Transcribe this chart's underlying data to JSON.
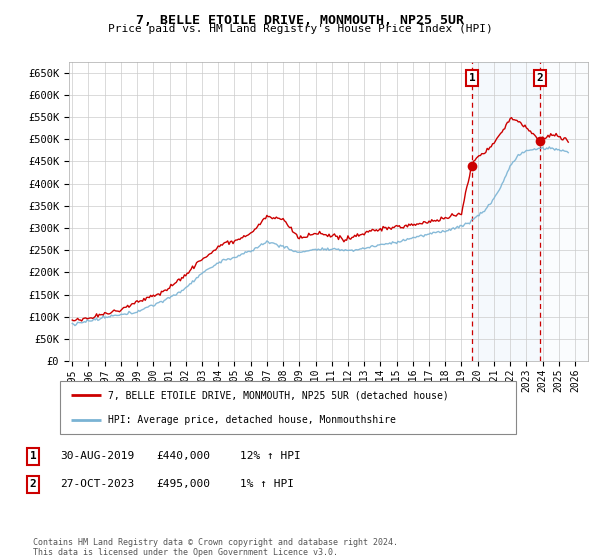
{
  "title": "7, BELLE ETOILE DRIVE, MONMOUTH, NP25 5UR",
  "subtitle": "Price paid vs. HM Land Registry's House Price Index (HPI)",
  "yticks": [
    0,
    50000,
    100000,
    150000,
    200000,
    250000,
    300000,
    350000,
    400000,
    450000,
    500000,
    550000,
    600000,
    650000
  ],
  "ylim": [
    0,
    675000
  ],
  "xlim_start": 1994.8,
  "xlim_end": 2026.8,
  "hpi_color": "#7ab3d4",
  "price_color": "#cc0000",
  "vline_color": "#cc0000",
  "shade_color": "#d8eaf8",
  "point1_date_num": 2019.667,
  "point1_price": 440000,
  "point1_label": "1",
  "point2_date_num": 2023.833,
  "point2_price": 495000,
  "point2_label": "2",
  "legend_house": "7, BELLE ETOILE DRIVE, MONMOUTH, NP25 5UR (detached house)",
  "legend_hpi": "HPI: Average price, detached house, Monmouthshire",
  "table_rows": [
    {
      "num": "1",
      "date": "30-AUG-2019",
      "price": "£440,000",
      "change": "12% ↑ HPI"
    },
    {
      "num": "2",
      "date": "27-OCT-2023",
      "price": "£495,000",
      "change": "1% ↑ HPI"
    }
  ],
  "footnote": "Contains HM Land Registry data © Crown copyright and database right 2024.\nThis data is licensed under the Open Government Licence v3.0.",
  "background_color": "#ffffff",
  "grid_color": "#cccccc"
}
